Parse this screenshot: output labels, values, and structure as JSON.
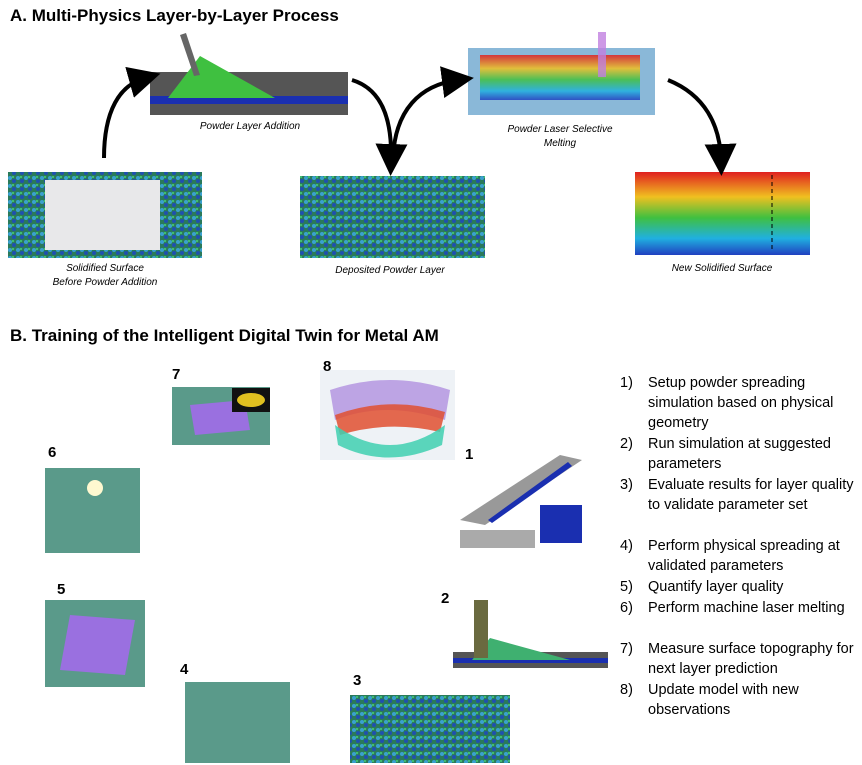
{
  "section_a": {
    "title": "A. Multi-Physics Layer-by-Layer Process",
    "captions": {
      "solidified": [
        "Solidified Surface",
        "Before Powder Addition"
      ],
      "powder_addition": [
        "Powder Layer Addition"
      ],
      "laser_melting": [
        "Powder Laser Selective",
        "Melting"
      ],
      "deposited": [
        "Deposited Powder Layer"
      ],
      "new_surface": [
        "New Solidified Surface"
      ]
    }
  },
  "section_b": {
    "title": "Training of the Intelligent Digital Twin for Metal AM",
    "title_prefix": "B.",
    "figure_labels": [
      "1",
      "2",
      "3",
      "4",
      "5",
      "6",
      "7",
      "8"
    ],
    "steps": [
      {
        "number": "1)",
        "text": "Setup powder spreading simulation based on physical geometry"
      },
      {
        "number": "2)",
        "text": "Run simulation at suggested parameters"
      },
      {
        "number": "3)",
        "text": "Evaluate results for layer quality to validate parameter set"
      },
      {
        "number": "4)",
        "text": "Perform physical spreading at validated parameters"
      },
      {
        "number": "5)",
        "text": "Quantify layer quality"
      },
      {
        "number": "6)",
        "text": "Perform machine laser melting"
      },
      {
        "number": "7)",
        "text": "Measure surface topography for next layer prediction"
      },
      {
        "number": "8)",
        "text": "Update model with new observations"
      }
    ]
  }
}
